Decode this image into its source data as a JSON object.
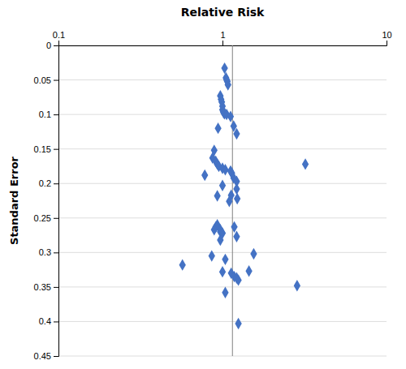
{
  "chart_data": {
    "type": "scatter",
    "title": "Relative Risk",
    "ylabel": "Standard Error",
    "log": "x",
    "grid": "y",
    "color": "#4472C4",
    "marker": "diamond",
    "xlim": [
      0.1,
      10
    ],
    "xticks": [
      0.1,
      1,
      10
    ],
    "ylim": [
      0.45,
      0
    ],
    "yticks": [
      0,
      0.05,
      0.1,
      0.15,
      0.2,
      0.25,
      0.3,
      0.35,
      0.4,
      0.45
    ],
    "vline": 1.15,
    "x": [
      1.03,
      1.05,
      1.06,
      1.07,
      1.08,
      0.97,
      0.98,
      0.99,
      1.0,
      1.0,
      1.01,
      1.02,
      1.03,
      1.06,
      1.12,
      1.17,
      0.94,
      1.22,
      0.89,
      0.87,
      0.91,
      0.93,
      0.95,
      1.0,
      1.04,
      1.12,
      1.14,
      0.78,
      1.17,
      1.22,
      3.2,
      1.0,
      1.22,
      1.13,
      0.93,
      1.23,
      1.1,
      0.93,
      1.18,
      0.97,
      0.97,
      0.91,
      0.89,
      1.0,
      1.22,
      0.97,
      0.86,
      1.04,
      1.55,
      0.57,
      1.0,
      1.13,
      1.18,
      1.22,
      1.25,
      1.45,
      2.85,
      1.04,
      1.25
    ],
    "values": [
      0.033,
      0.047,
      0.05,
      0.052,
      0.057,
      0.073,
      0.078,
      0.082,
      0.088,
      0.093,
      0.096,
      0.098,
      0.099,
      0.1,
      0.103,
      0.117,
      0.12,
      0.128,
      0.152,
      0.163,
      0.168,
      0.172,
      0.175,
      0.178,
      0.18,
      0.182,
      0.185,
      0.188,
      0.192,
      0.197,
      0.172,
      0.203,
      0.208,
      0.217,
      0.218,
      0.222,
      0.226,
      0.26,
      0.263,
      0.267,
      0.27,
      0.263,
      0.267,
      0.272,
      0.277,
      0.282,
      0.305,
      0.31,
      0.302,
      0.318,
      0.328,
      0.33,
      0.335,
      0.337,
      0.34,
      0.327,
      0.348,
      0.358,
      0.403
    ]
  }
}
